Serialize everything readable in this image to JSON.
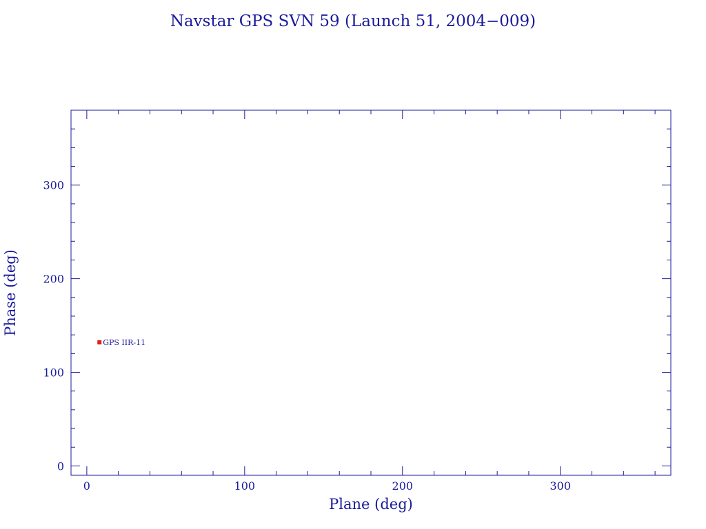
{
  "chart_data": {
    "type": "scatter",
    "title": "Navstar GPS SVN 59 (Launch 51, 2004−009)",
    "xlabel": "Plane (deg)",
    "ylabel": "Phase (deg)",
    "xlim": [
      -10,
      370
    ],
    "ylim": [
      -10,
      380
    ],
    "xticks": [
      0,
      100,
      200,
      300
    ],
    "yticks": [
      0,
      100,
      200,
      300
    ],
    "x_minor_step": 20,
    "y_minor_step": 20,
    "grid": false,
    "axis_color": "#1a1a9c",
    "marker_color": "#e0201c",
    "points": [
      {
        "x": 8,
        "y": 132,
        "label": "GPS IIR-11"
      }
    ]
  }
}
